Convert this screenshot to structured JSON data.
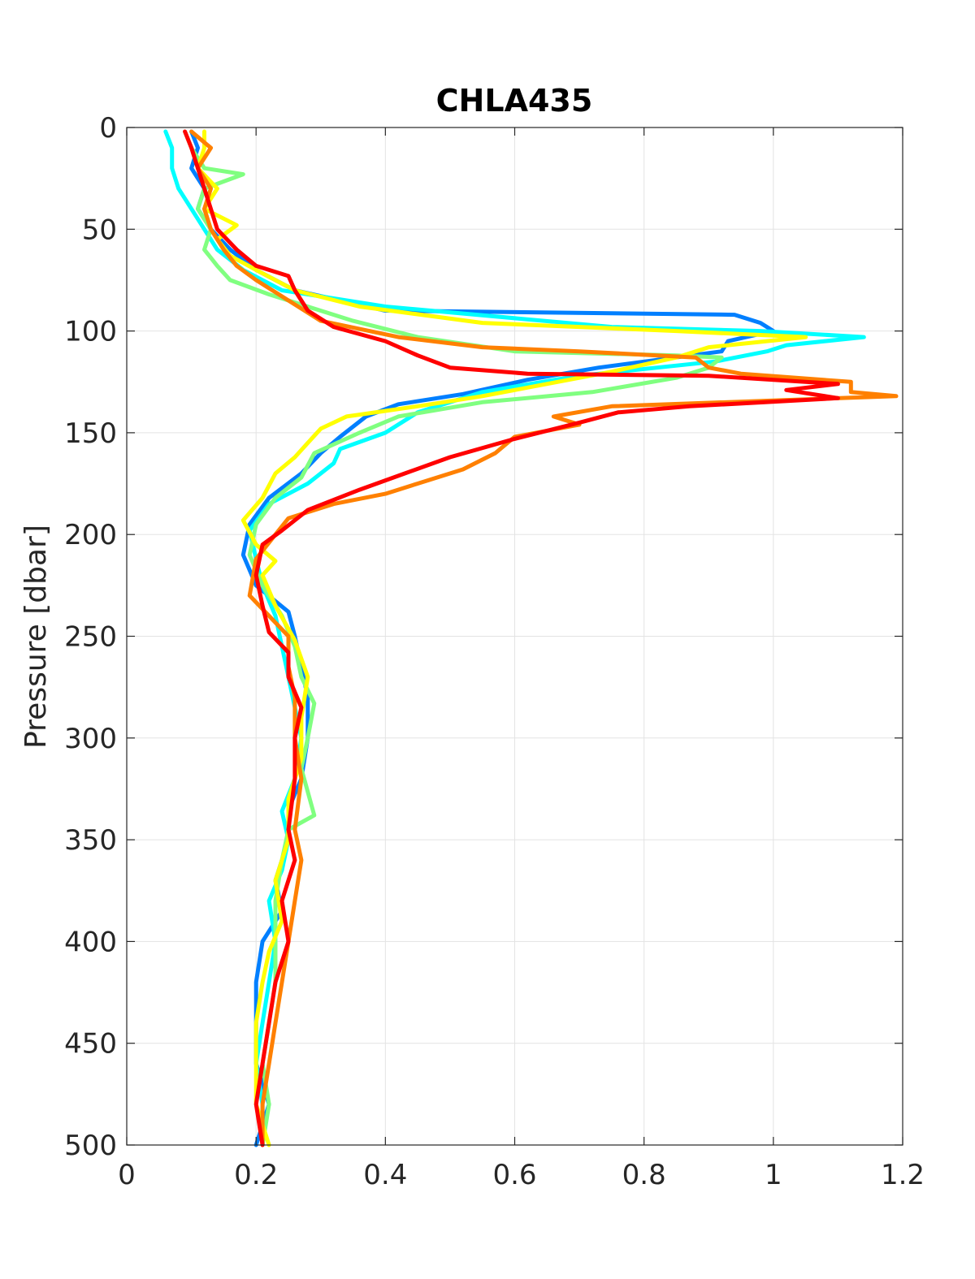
{
  "chart_data": {
    "type": "line",
    "title": "CHLA435",
    "xlabel": "",
    "ylabel": "Pressure [dbar]",
    "xlim": [
      0,
      1.2
    ],
    "ylim": [
      0,
      500
    ],
    "y_reversed": true,
    "grid": true,
    "x_ticks": [
      "0",
      "0.2",
      "0.4",
      "0.6",
      "0.8",
      "1",
      "1.2"
    ],
    "y_ticks": [
      "0",
      "50",
      "100",
      "150",
      "200",
      "250",
      "300",
      "350",
      "400",
      "450",
      "500"
    ],
    "series": [
      {
        "color": "#007fff",
        "points": [
          [
            0.1,
            2
          ],
          [
            0.11,
            10
          ],
          [
            0.1,
            20
          ],
          [
            0.12,
            30
          ],
          [
            0.11,
            40
          ],
          [
            0.13,
            50
          ],
          [
            0.16,
            60
          ],
          [
            0.2,
            70
          ],
          [
            0.26,
            80
          ],
          [
            0.4,
            90
          ],
          [
            0.94,
            92
          ],
          [
            0.98,
            96
          ],
          [
            1.0,
            100
          ],
          [
            0.93,
            105
          ],
          [
            0.92,
            110
          ],
          [
            0.73,
            118
          ],
          [
            0.62,
            124
          ],
          [
            0.52,
            131
          ],
          [
            0.42,
            136
          ],
          [
            0.37,
            142
          ],
          [
            0.33,
            152
          ],
          [
            0.3,
            160
          ],
          [
            0.27,
            170
          ],
          [
            0.22,
            182
          ],
          [
            0.19,
            195
          ],
          [
            0.18,
            210
          ],
          [
            0.2,
            225
          ],
          [
            0.25,
            238
          ],
          [
            0.26,
            250
          ],
          [
            0.27,
            265
          ],
          [
            0.28,
            280
          ],
          [
            0.28,
            300
          ],
          [
            0.27,
            320
          ],
          [
            0.25,
            335
          ],
          [
            0.25,
            350
          ],
          [
            0.23,
            370
          ],
          [
            0.24,
            385
          ],
          [
            0.21,
            400
          ],
          [
            0.2,
            420
          ],
          [
            0.2,
            440
          ],
          [
            0.2,
            460
          ],
          [
            0.22,
            480
          ],
          [
            0.2,
            500
          ]
        ]
      },
      {
        "color": "#00ffff",
        "points": [
          [
            0.06,
            2
          ],
          [
            0.07,
            10
          ],
          [
            0.07,
            20
          ],
          [
            0.08,
            30
          ],
          [
            0.1,
            40
          ],
          [
            0.12,
            50
          ],
          [
            0.14,
            60
          ],
          [
            0.18,
            70
          ],
          [
            0.24,
            80
          ],
          [
            0.4,
            88
          ],
          [
            0.75,
            98
          ],
          [
            0.98,
            100
          ],
          [
            1.14,
            103
          ],
          [
            1.02,
            107
          ],
          [
            0.99,
            110
          ],
          [
            0.91,
            115
          ],
          [
            0.7,
            122
          ],
          [
            0.55,
            130
          ],
          [
            0.45,
            140
          ],
          [
            0.4,
            150
          ],
          [
            0.33,
            158
          ],
          [
            0.32,
            165
          ],
          [
            0.28,
            175
          ],
          [
            0.22,
            185
          ],
          [
            0.19,
            198
          ],
          [
            0.2,
            212
          ],
          [
            0.21,
            225
          ],
          [
            0.23,
            240
          ],
          [
            0.24,
            255
          ],
          [
            0.25,
            270
          ],
          [
            0.26,
            285
          ],
          [
            0.27,
            300
          ],
          [
            0.26,
            320
          ],
          [
            0.24,
            336
          ],
          [
            0.25,
            350
          ],
          [
            0.24,
            365
          ],
          [
            0.22,
            380
          ],
          [
            0.23,
            400
          ],
          [
            0.22,
            420
          ],
          [
            0.21,
            440
          ],
          [
            0.2,
            460
          ],
          [
            0.21,
            480
          ],
          [
            0.21,
            500
          ]
        ]
      },
      {
        "color": "#80ff80",
        "points": [
          [
            0.09,
            2
          ],
          [
            0.1,
            10
          ],
          [
            0.12,
            20
          ],
          [
            0.18,
            23
          ],
          [
            0.12,
            30
          ],
          [
            0.11,
            40
          ],
          [
            0.13,
            50
          ],
          [
            0.12,
            60
          ],
          [
            0.14,
            68
          ],
          [
            0.16,
            75
          ],
          [
            0.22,
            82
          ],
          [
            0.35,
            95
          ],
          [
            0.45,
            103
          ],
          [
            0.6,
            110
          ],
          [
            0.85,
            112
          ],
          [
            0.92,
            113
          ],
          [
            0.9,
            118
          ],
          [
            0.85,
            123
          ],
          [
            0.72,
            130
          ],
          [
            0.55,
            135
          ],
          [
            0.42,
            142
          ],
          [
            0.36,
            150
          ],
          [
            0.29,
            160
          ],
          [
            0.27,
            172
          ],
          [
            0.23,
            182
          ],
          [
            0.2,
            195
          ],
          [
            0.19,
            210
          ],
          [
            0.21,
            225
          ],
          [
            0.24,
            240
          ],
          [
            0.26,
            255
          ],
          [
            0.27,
            270
          ],
          [
            0.29,
            283
          ],
          [
            0.28,
            300
          ],
          [
            0.27,
            315
          ],
          [
            0.29,
            338
          ],
          [
            0.25,
            345
          ],
          [
            0.24,
            360
          ],
          [
            0.23,
            380
          ],
          [
            0.23,
            400
          ],
          [
            0.23,
            420
          ],
          [
            0.22,
            440
          ],
          [
            0.21,
            460
          ],
          [
            0.22,
            480
          ],
          [
            0.21,
            500
          ]
        ]
      },
      {
        "color": "#ffff00",
        "points": [
          [
            0.12,
            2
          ],
          [
            0.12,
            10
          ],
          [
            0.11,
            20
          ],
          [
            0.14,
            30
          ],
          [
            0.12,
            40
          ],
          [
            0.17,
            48
          ],
          [
            0.14,
            55
          ],
          [
            0.16,
            63
          ],
          [
            0.2,
            70
          ],
          [
            0.26,
            80
          ],
          [
            0.36,
            88
          ],
          [
            0.55,
            96
          ],
          [
            0.85,
            100
          ],
          [
            1.05,
            103
          ],
          [
            0.9,
            108
          ],
          [
            0.85,
            113
          ],
          [
            0.75,
            120
          ],
          [
            0.55,
            132
          ],
          [
            0.45,
            137
          ],
          [
            0.34,
            142
          ],
          [
            0.3,
            148
          ],
          [
            0.28,
            155
          ],
          [
            0.26,
            162
          ],
          [
            0.23,
            170
          ],
          [
            0.21,
            182
          ],
          [
            0.18,
            193
          ],
          [
            0.2,
            205
          ],
          [
            0.23,
            213
          ],
          [
            0.21,
            220
          ],
          [
            0.23,
            235
          ],
          [
            0.26,
            252
          ],
          [
            0.28,
            270
          ],
          [
            0.27,
            290
          ],
          [
            0.27,
            310
          ],
          [
            0.25,
            330
          ],
          [
            0.25,
            350
          ],
          [
            0.23,
            370
          ],
          [
            0.24,
            390
          ],
          [
            0.22,
            405
          ],
          [
            0.21,
            420
          ],
          [
            0.2,
            440
          ],
          [
            0.2,
            460
          ],
          [
            0.2,
            480
          ],
          [
            0.22,
            500
          ]
        ]
      },
      {
        "color": "#ff8000",
        "points": [
          [
            0.1,
            2
          ],
          [
            0.13,
            10
          ],
          [
            0.11,
            20
          ],
          [
            0.13,
            30
          ],
          [
            0.12,
            40
          ],
          [
            0.13,
            50
          ],
          [
            0.15,
            60
          ],
          [
            0.17,
            68
          ],
          [
            0.2,
            75
          ],
          [
            0.25,
            85
          ],
          [
            0.3,
            95
          ],
          [
            0.42,
            103
          ],
          [
            0.55,
            108
          ],
          [
            0.7,
            110
          ],
          [
            0.88,
            113
          ],
          [
            0.9,
            118
          ],
          [
            0.95,
            121
          ],
          [
            1.12,
            125
          ],
          [
            1.12,
            130
          ],
          [
            1.19,
            132
          ],
          [
            0.75,
            137
          ],
          [
            0.66,
            142
          ],
          [
            0.7,
            146
          ],
          [
            0.6,
            152
          ],
          [
            0.57,
            160
          ],
          [
            0.52,
            168
          ],
          [
            0.45,
            175
          ],
          [
            0.4,
            180
          ],
          [
            0.32,
            185
          ],
          [
            0.25,
            192
          ],
          [
            0.23,
            200
          ],
          [
            0.2,
            212
          ],
          [
            0.19,
            230
          ],
          [
            0.22,
            240
          ],
          [
            0.25,
            250
          ],
          [
            0.25,
            265
          ],
          [
            0.26,
            280
          ],
          [
            0.26,
            300
          ],
          [
            0.27,
            320
          ],
          [
            0.26,
            345
          ],
          [
            0.27,
            360
          ],
          [
            0.26,
            380
          ],
          [
            0.25,
            400
          ],
          [
            0.24,
            420
          ],
          [
            0.23,
            440
          ],
          [
            0.22,
            460
          ],
          [
            0.21,
            480
          ],
          [
            0.21,
            500
          ]
        ]
      },
      {
        "color": "#ff0000",
        "points": [
          [
            0.09,
            2
          ],
          [
            0.1,
            10
          ],
          [
            0.11,
            20
          ],
          [
            0.12,
            30
          ],
          [
            0.13,
            40
          ],
          [
            0.14,
            50
          ],
          [
            0.17,
            60
          ],
          [
            0.2,
            68
          ],
          [
            0.25,
            73
          ],
          [
            0.26,
            80
          ],
          [
            0.28,
            90
          ],
          [
            0.32,
            98
          ],
          [
            0.4,
            105
          ],
          [
            0.45,
            112
          ],
          [
            0.5,
            118
          ],
          [
            0.62,
            121
          ],
          [
            0.9,
            122
          ],
          [
            1.1,
            126
          ],
          [
            1.02,
            129
          ],
          [
            1.1,
            133
          ],
          [
            0.87,
            137
          ],
          [
            0.76,
            140
          ],
          [
            0.7,
            145
          ],
          [
            0.6,
            153
          ],
          [
            0.5,
            162
          ],
          [
            0.43,
            170
          ],
          [
            0.36,
            178
          ],
          [
            0.28,
            188
          ],
          [
            0.24,
            198
          ],
          [
            0.21,
            205
          ],
          [
            0.2,
            220
          ],
          [
            0.21,
            235
          ],
          [
            0.22,
            248
          ],
          [
            0.25,
            258
          ],
          [
            0.25,
            270
          ],
          [
            0.27,
            285
          ],
          [
            0.26,
            300
          ],
          [
            0.26,
            320
          ],
          [
            0.25,
            345
          ],
          [
            0.26,
            360
          ],
          [
            0.24,
            380
          ],
          [
            0.25,
            400
          ],
          [
            0.23,
            420
          ],
          [
            0.22,
            440
          ],
          [
            0.21,
            460
          ],
          [
            0.2,
            480
          ],
          [
            0.21,
            500
          ]
        ]
      }
    ]
  }
}
